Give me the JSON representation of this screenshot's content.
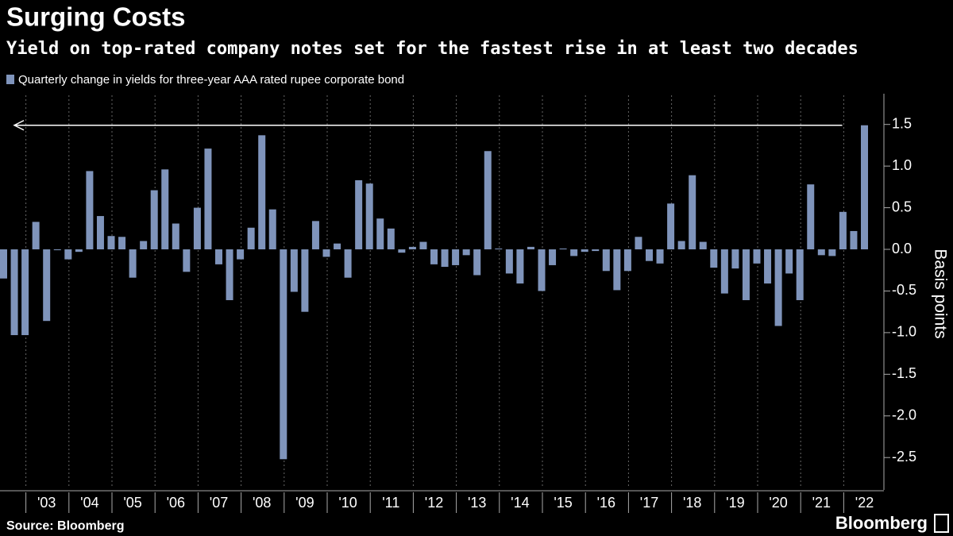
{
  "chart_data": {
    "type": "bar",
    "title": "Surging Costs",
    "subtitle": "Yield on top-rated company notes set for the fastest rise in at least two decades",
    "y_label": "Basis points",
    "source": "Source: Bloomberg",
    "logo": "Bloomberg",
    "categories": [
      null,
      null,
      null,
      null,
      "'03",
      null,
      null,
      null,
      "'04",
      null,
      null,
      null,
      "'05",
      null,
      null,
      null,
      "'06",
      null,
      null,
      null,
      "'07",
      null,
      null,
      null,
      "'08",
      null,
      null,
      null,
      "'09",
      null,
      null,
      null,
      "'10",
      null,
      null,
      null,
      "'11",
      null,
      null,
      null,
      "'12",
      null,
      null,
      null,
      "'13",
      null,
      null,
      null,
      "'14",
      null,
      null,
      null,
      "'15",
      null,
      null,
      null,
      "'16",
      null,
      null,
      null,
      "'17",
      null,
      null,
      null,
      "'18",
      null,
      null,
      null,
      "'19",
      null,
      null,
      null,
      "'20",
      null,
      null,
      null,
      "'21",
      null,
      null,
      null,
      "'22"
    ],
    "series": [
      {
        "name": "Quarterly change in yields for three-year AAA rated rupee corporate bond",
        "color": "#7f94bb",
        "values": [
          -0.35,
          -1.03,
          -1.03,
          0.33,
          -0.86,
          -0.01,
          -0.12,
          -0.03,
          0.94,
          0.4,
          0.16,
          0.15,
          -0.34,
          0.1,
          0.71,
          0.96,
          0.31,
          -0.27,
          0.5,
          1.21,
          -0.18,
          -0.61,
          -0.12,
          0.26,
          1.37,
          0.48,
          -2.52,
          -0.51,
          -0.75,
          0.34,
          -0.09,
          0.07,
          -0.34,
          0.83,
          0.79,
          0.37,
          0.25,
          -0.04,
          0.03,
          0.09,
          -0.18,
          -0.21,
          -0.19,
          -0.07,
          -0.31,
          1.18,
          0.01,
          -0.29,
          -0.41,
          0.03,
          -0.5,
          -0.19,
          0.01,
          -0.08,
          -0.03,
          -0.02,
          -0.26,
          -0.49,
          -0.26,
          0.15,
          -0.14,
          -0.17,
          0.55,
          0.1,
          0.89,
          0.09,
          -0.22,
          -0.53,
          -0.23,
          -0.61,
          -0.17,
          -0.41,
          -0.92,
          -0.29,
          -0.61,
          0.78,
          -0.07,
          -0.08,
          0.45,
          0.22,
          1.49
        ]
      }
    ],
    "ylim": [
      -2.87,
      1.85
    ],
    "yticks": [
      -2.5,
      {
        "value": -2,
        "label": "-2.0"
      },
      -1.5,
      {
        "value": -1,
        "label": "-1.0"
      },
      -0.5,
      {
        "value": 0,
        "label": "0.0"
      },
      0.5,
      {
        "value": 1,
        "label": "1.0"
      },
      1.5
    ]
  }
}
